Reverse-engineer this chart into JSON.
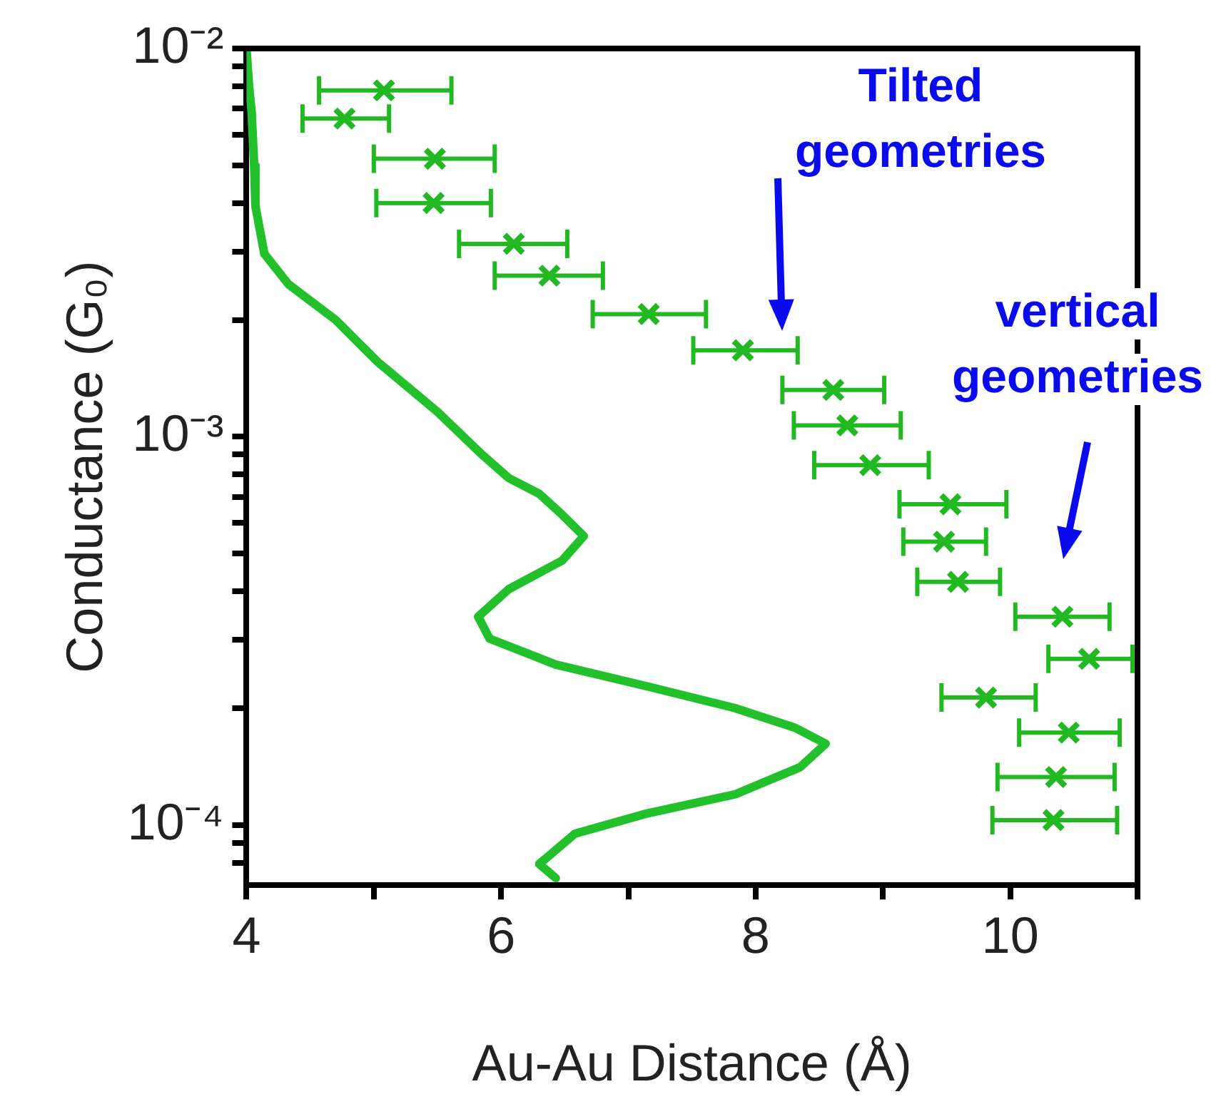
{
  "chart_data": {
    "type": "scatter",
    "xlabel": "Au-Au Distance (Å)",
    "ylabel": "Conductance (G₀)",
    "log": "y",
    "grid": false,
    "legend": false,
    "marker": "cross",
    "xlim": [
      4,
      11
    ],
    "xticks": [
      4,
      {
        "value": 5,
        "label": null
      },
      6,
      {
        "value": 7,
        "label": null
      },
      8,
      {
        "value": 9,
        "label": null
      },
      10,
      {
        "value": 11,
        "label": null
      }
    ],
    "ylim": [
      7.1e-05,
      0.01
    ],
    "yticks": [
      {
        "value": 0.0001,
        "label": "10⁻⁴"
      },
      {
        "value": 0.001,
        "label": "10⁻³"
      },
      {
        "value": 0.01,
        "label": "10⁻²"
      },
      {
        "value": 8e-05,
        "label": null
      },
      {
        "value": 9e-05,
        "label": null
      },
      {
        "value": 0.0002,
        "label": null
      },
      {
        "value": 0.0003,
        "label": null
      },
      {
        "value": 0.0004,
        "label": null
      },
      {
        "value": 0.0005,
        "label": null
      },
      {
        "value": 0.0006,
        "label": null
      },
      {
        "value": 0.0007,
        "label": null
      },
      {
        "value": 0.0008,
        "label": null
      },
      {
        "value": 0.0009,
        "label": null
      },
      {
        "value": 0.002,
        "label": null
      },
      {
        "value": 0.003,
        "label": null
      },
      {
        "value": 0.004,
        "label": null
      },
      {
        "value": 0.005,
        "label": null
      },
      {
        "value": 0.006,
        "label": null
      },
      {
        "value": 0.007,
        "label": null
      },
      {
        "value": 0.008,
        "label": null
      },
      {
        "value": 0.009,
        "label": null
      }
    ],
    "series": [
      {
        "type": "line",
        "marker": "none",
        "color": "#22c02a",
        "x": [
          4.0,
          4.02,
          4.04,
          4.06,
          4.07,
          4.14,
          4.33,
          4.7,
          5.03,
          5.5,
          5.85,
          6.06,
          6.3,
          6.48,
          6.65,
          6.48,
          6.06,
          5.82,
          5.91,
          6.43,
          7.14,
          7.84,
          8.31,
          8.55,
          8.35,
          7.84,
          7.14,
          6.58,
          6.3,
          6.43
        ],
        "values": [
          0.01,
          0.008,
          0.0069,
          0.005,
          0.00393,
          0.00296,
          0.00247,
          0.002,
          0.00156,
          0.00116,
          0.0009,
          0.000783,
          0.000713,
          0.00063,
          0.000555,
          0.00048,
          0.000405,
          0.000344,
          0.000302,
          0.000259,
          0.000228,
          0.0002,
          0.000178,
          0.000162,
          0.000141,
          0.00012,
          0.000107,
          9.5e-05,
          7.94e-05,
          7.3e-05
        ]
      },
      {
        "color": "#22b822",
        "x": [
          5.08,
          4.77,
          5.48,
          5.47,
          6.1,
          6.38,
          7.16,
          7.9,
          8.61,
          8.72,
          8.9,
          9.53,
          9.48,
          9.59,
          10.41,
          10.62,
          9.81,
          10.46,
          10.36,
          10.34
        ],
        "values": [
          0.0078,
          0.0066,
          0.0052,
          0.004,
          0.00314,
          0.0026,
          0.00207,
          0.00167,
          0.00132,
          0.00107,
          0.000845,
          0.00067,
          0.000537,
          0.000423,
          0.000344,
          0.000268,
          0.000213,
          0.000173,
          0.000133,
          0.000103
        ],
        "xerrors": [
          [
            4.57,
            5.61
          ],
          [
            4.44,
            5.12
          ],
          [
            5.0,
            5.95
          ],
          [
            5.02,
            5.92
          ],
          [
            5.67,
            6.52
          ],
          [
            5.95,
            6.8
          ],
          [
            6.72,
            7.61
          ],
          [
            7.51,
            8.33
          ],
          0.4,
          0.42,
          [
            8.46,
            9.36
          ],
          [
            9.13,
            9.97
          ],
          [
            9.16,
            9.81
          ],
          [
            9.27,
            9.92
          ],
          [
            10.04,
            10.78
          ],
          [
            10.3,
            10.96
          ],
          [
            9.46,
            10.2
          ],
          [
            10.07,
            10.86
          ],
          [
            9.9,
            10.82
          ],
          [
            9.86,
            10.84
          ]
        ]
      }
    ],
    "annotations": [
      "Tilted geometries",
      "vertical geometries"
    ]
  }
}
